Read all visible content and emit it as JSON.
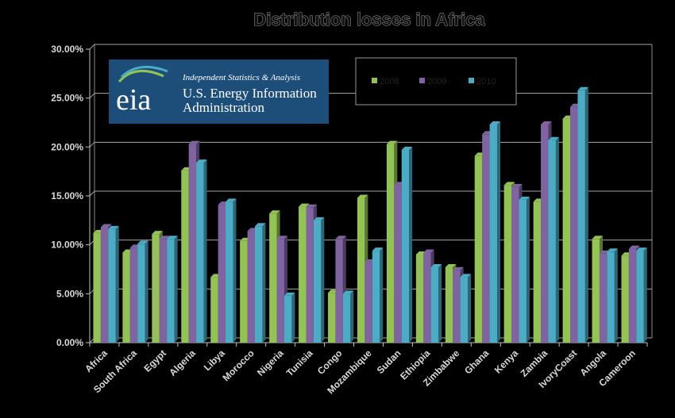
{
  "chart_data": {
    "type": "bar",
    "title": "Distribution losses in Africa",
    "categories": [
      "Africa",
      "South Africa",
      "Egypt",
      "Algeria",
      "Libya",
      "Morocco",
      "Nigeria",
      "Tunisia",
      "Congo",
      "Mozambique",
      "Sudan",
      "Ethiopia",
      "Zimbabwe",
      "Ghana",
      "Kenya",
      "Zambia",
      "IvoryCoast",
      "Angola",
      "Cameroon"
    ],
    "series": [
      {
        "name": "2008",
        "color": "#92c353",
        "values": [
          11.2,
          9.2,
          11.1,
          17.6,
          6.7,
          10.4,
          13.2,
          13.9,
          5.1,
          14.8,
          20.3,
          9.0,
          7.7,
          19.1,
          16.1,
          14.4,
          22.9,
          10.6,
          8.9
        ]
      },
      {
        "name": "2009",
        "color": "#8064a2",
        "values": [
          11.8,
          9.7,
          10.6,
          20.3,
          14.1,
          11.4,
          10.6,
          13.8,
          10.6,
          8.2,
          16.1,
          9.2,
          7.4,
          21.3,
          15.9,
          22.3,
          24.1,
          9.1,
          9.6
        ]
      },
      {
        "name": "2010",
        "color": "#4bacc6",
        "values": [
          11.6,
          10.1,
          10.6,
          18.4,
          14.4,
          11.9,
          4.8,
          12.5,
          5.0,
          9.4,
          19.7,
          7.7,
          6.7,
          22.3,
          14.6,
          20.7,
          25.8,
          9.3,
          9.4
        ]
      }
    ],
    "ylim": [
      0,
      30
    ],
    "yticks": [
      "0.00%",
      "5.00%",
      "10.00%",
      "15.00%",
      "20.00%",
      "25.00%",
      "30.00%"
    ],
    "grid": true,
    "legend": "top"
  },
  "logo": {
    "word": "eia",
    "tagline": "Independent Statistics & Analysis",
    "line1": "U.S. Energy Information",
    "line2": "Administration",
    "bg_color": "#1d4e7a"
  }
}
